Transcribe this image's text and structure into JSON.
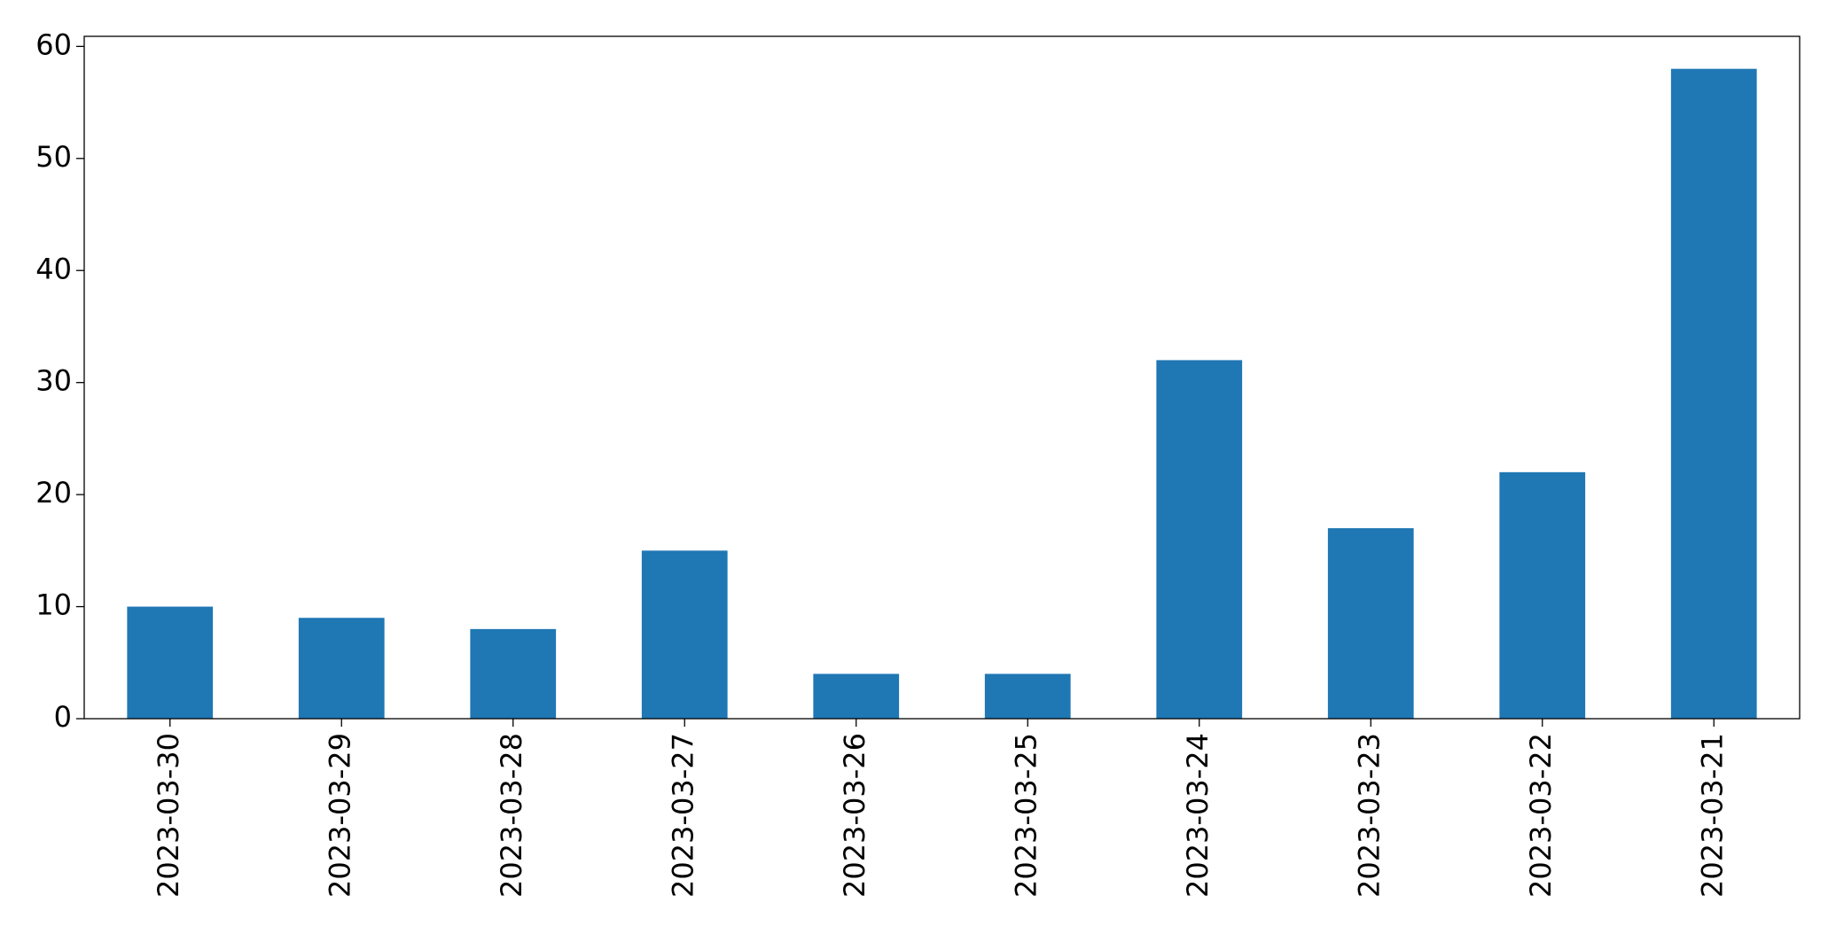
{
  "chart_data": {
    "type": "bar",
    "categories": [
      "2023-03-30",
      "2023-03-29",
      "2023-03-28",
      "2023-03-27",
      "2023-03-26",
      "2023-03-25",
      "2023-03-24",
      "2023-03-23",
      "2023-03-22",
      "2023-03-21"
    ],
    "values": [
      10,
      9,
      8,
      15,
      4,
      4,
      32,
      17,
      22,
      58
    ],
    "color": "#1f77b4",
    "ylim": [
      0,
      60.9
    ],
    "yticks": [
      0,
      10,
      20,
      30,
      40,
      50,
      60
    ],
    "grid": false
  }
}
